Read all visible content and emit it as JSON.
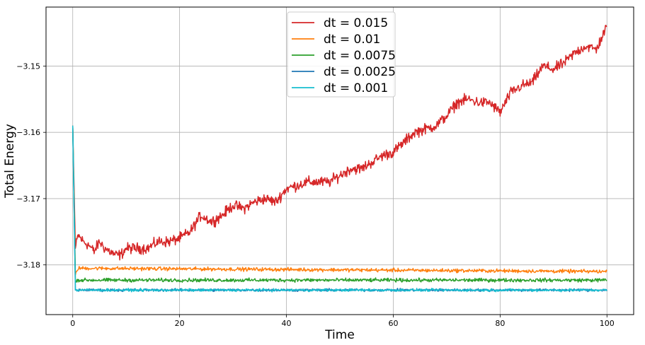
{
  "chart_data": {
    "type": "line",
    "title": "",
    "xlabel": "Time",
    "ylabel": "Total Energy",
    "xlim": [
      -5,
      105
    ],
    "ylim": [
      -3.1875,
      -3.1411
    ],
    "x_ticks": [
      0,
      20,
      40,
      60,
      80,
      100
    ],
    "x_tick_labels": [
      "0",
      "20",
      "40",
      "60",
      "80",
      "100"
    ],
    "y_ticks": [
      -3.18,
      -3.17,
      -3.16,
      -3.15
    ],
    "y_tick_labels": [
      "−3.18",
      "−3.17",
      "−3.16",
      "−3.15"
    ],
    "grid": true,
    "legend_position": "top-center",
    "series": [
      {
        "name": "dt = 0.015",
        "color": "#d62728",
        "x": [
          0,
          0.5,
          1,
          2,
          3,
          4,
          5,
          6,
          7,
          8,
          9,
          10,
          12,
          14,
          16,
          18,
          20,
          22,
          24,
          26,
          28,
          30,
          32,
          34,
          36,
          38,
          40,
          42,
          44,
          46,
          48,
          50,
          52,
          54,
          56,
          58,
          60,
          62,
          64,
          66,
          68,
          70,
          72,
          74,
          76,
          78,
          80,
          82,
          84,
          86,
          88,
          90,
          92,
          94,
          96,
          98,
          100
        ],
        "y": [
          -3.159,
          -3.1775,
          -3.1755,
          -3.1765,
          -3.177,
          -3.178,
          -3.1765,
          -3.1775,
          -3.178,
          -3.1785,
          -3.1785,
          -3.1775,
          -3.1775,
          -3.1775,
          -3.1765,
          -3.1765,
          -3.176,
          -3.175,
          -3.1725,
          -3.1735,
          -3.1725,
          -3.171,
          -3.1715,
          -3.1705,
          -3.17,
          -3.1705,
          -3.1685,
          -3.168,
          -3.1675,
          -3.1675,
          -3.1675,
          -3.1665,
          -3.1655,
          -3.1655,
          -3.1645,
          -3.1635,
          -3.163,
          -3.1615,
          -3.16,
          -3.1595,
          -3.159,
          -3.1575,
          -3.1555,
          -3.155,
          -3.1555,
          -3.1555,
          -3.157,
          -3.154,
          -3.153,
          -3.1525,
          -3.15,
          -3.1505,
          -3.1495,
          -3.148,
          -3.147,
          -3.1475,
          -3.144
        ]
      },
      {
        "name": "dt = 0.01",
        "color": "#ff7f0e",
        "x": [
          0,
          0.5,
          1,
          100
        ],
        "y": [
          -3.159,
          -3.1815,
          -3.1805,
          -3.181
        ],
        "mean": -3.181,
        "noise": 0.0004
      },
      {
        "name": "dt = 0.0075",
        "color": "#2ca02c",
        "x": [
          0,
          0.5,
          1,
          100
        ],
        "y": [
          -3.159,
          -3.1823,
          -3.1823,
          -3.1823
        ],
        "mean": -3.1823,
        "noise": 0.0004
      },
      {
        "name": "dt = 0.0025",
        "color": "#1f77b4",
        "x": [
          0,
          0.5,
          1,
          100
        ],
        "y": [
          -3.159,
          -3.1838,
          -3.1838,
          -3.1838
        ],
        "mean": -3.1838,
        "noise": 0.0003
      },
      {
        "name": "dt = 0.001",
        "color": "#17becf",
        "x": [
          0,
          0.5,
          1,
          100
        ],
        "y": [
          -3.159,
          -3.1838,
          -3.1838,
          -3.1838
        ],
        "mean": -3.1838,
        "noise": 0.0003
      }
    ]
  }
}
